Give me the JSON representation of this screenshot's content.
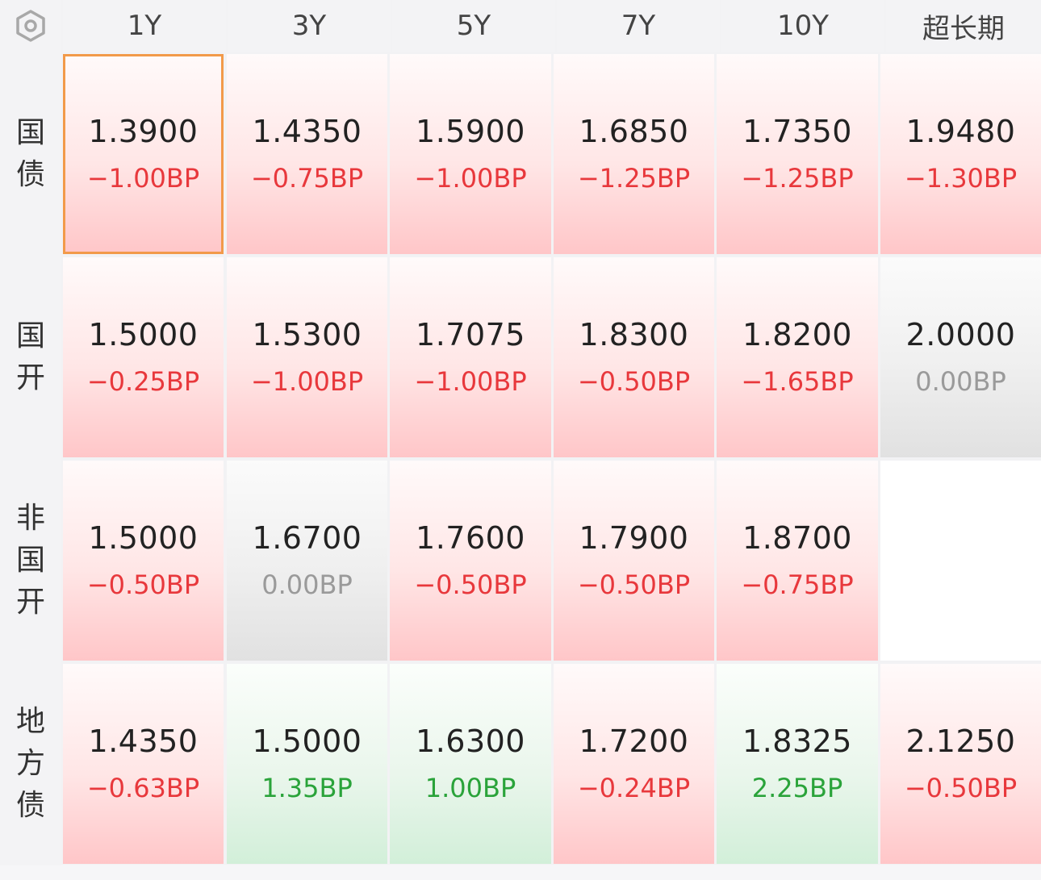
{
  "header": {
    "tenors": [
      "1Y",
      "3Y",
      "5Y",
      "7Y",
      "10Y",
      "超长期"
    ]
  },
  "icons": {
    "settings": "hexagon-gear-icon"
  },
  "colors": {
    "down": "#e8383c",
    "up": "#2aa33a",
    "flat": "#9a9a9a",
    "selected_border": "#f29a4a"
  },
  "rows": [
    {
      "label": "国债",
      "label_chars": [
        "国",
        "债"
      ],
      "cells": [
        {
          "yield": "1.3900",
          "change": "−1.00BP",
          "trend": "red",
          "selected": true
        },
        {
          "yield": "1.4350",
          "change": "−0.75BP",
          "trend": "red"
        },
        {
          "yield": "1.5900",
          "change": "−1.00BP",
          "trend": "red"
        },
        {
          "yield": "1.6850",
          "change": "−1.25BP",
          "trend": "red"
        },
        {
          "yield": "1.7350",
          "change": "−1.25BP",
          "trend": "red"
        },
        {
          "yield": "1.9480",
          "change": "−1.30BP",
          "trend": "red"
        }
      ]
    },
    {
      "label": "国开",
      "label_chars": [
        "国",
        "开"
      ],
      "cells": [
        {
          "yield": "1.5000",
          "change": "−0.25BP",
          "trend": "red"
        },
        {
          "yield": "1.5300",
          "change": "−1.00BP",
          "trend": "red"
        },
        {
          "yield": "1.7075",
          "change": "−1.00BP",
          "trend": "red"
        },
        {
          "yield": "1.8300",
          "change": "−0.50BP",
          "trend": "red"
        },
        {
          "yield": "1.8200",
          "change": "−1.65BP",
          "trend": "red"
        },
        {
          "yield": "2.0000",
          "change": "0.00BP",
          "trend": "gray"
        }
      ]
    },
    {
      "label": "非国开",
      "label_chars": [
        "非",
        "国",
        "开"
      ],
      "cells": [
        {
          "yield": "1.5000",
          "change": "−0.50BP",
          "trend": "red"
        },
        {
          "yield": "1.6700",
          "change": "0.00BP",
          "trend": "gray"
        },
        {
          "yield": "1.7600",
          "change": "−0.50BP",
          "trend": "red"
        },
        {
          "yield": "1.7900",
          "change": "−0.50BP",
          "trend": "red"
        },
        {
          "yield": "1.8700",
          "change": "−0.75BP",
          "trend": "red"
        },
        null
      ]
    },
    {
      "label": "地方债",
      "label_chars": [
        "地",
        "方",
        "债"
      ],
      "cells": [
        {
          "yield": "1.4350",
          "change": "−0.63BP",
          "trend": "red"
        },
        {
          "yield": "1.5000",
          "change": "1.35BP",
          "trend": "green"
        },
        {
          "yield": "1.6300",
          "change": "1.00BP",
          "trend": "green"
        },
        {
          "yield": "1.7200",
          "change": "−0.24BP",
          "trend": "red"
        },
        {
          "yield": "1.8325",
          "change": "2.25BP",
          "trend": "green"
        },
        {
          "yield": "2.1250",
          "change": "−0.50BP",
          "trend": "red"
        }
      ]
    }
  ]
}
